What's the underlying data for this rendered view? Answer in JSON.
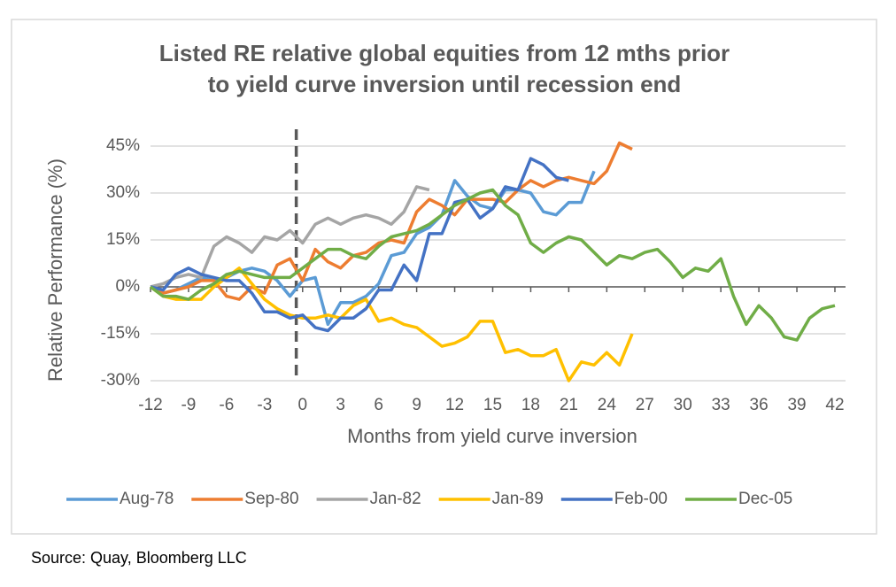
{
  "chart_data": {
    "type": "line",
    "title": [
      "Listed RE relative global equities from 12 mths prior",
      "to yield curve inversion until recession end"
    ],
    "x_label": "Months from yield curve inversion",
    "y_label": "Relative Performance (%)",
    "source": "Source: Quay, Bloomberg LLC",
    "x": [
      -12,
      -11,
      -10,
      -9,
      -8,
      -7,
      -6,
      -5,
      -4,
      -3,
      -2,
      -1,
      0,
      1,
      2,
      3,
      4,
      5,
      6,
      7,
      8,
      9,
      10,
      11,
      12,
      13,
      14,
      15,
      16,
      17,
      18,
      19,
      20,
      21,
      22,
      23,
      24,
      25,
      26,
      27,
      28,
      29,
      30,
      31,
      32,
      33,
      34,
      35,
      36,
      37,
      38,
      39,
      40,
      41,
      42
    ],
    "xlim": [
      -12,
      42
    ],
    "xticks": [
      -12,
      -9,
      -6,
      -3,
      0,
      3,
      6,
      9,
      12,
      15,
      18,
      21,
      24,
      27,
      30,
      33,
      36,
      39,
      42
    ],
    "ylim": [
      -30,
      45
    ],
    "yticks": [
      {
        "value": -30,
        "label": "-30%"
      },
      {
        "value": -15,
        "label": "-15%"
      },
      {
        "value": 0,
        "label": "0%"
      },
      {
        "value": 15,
        "label": "15%"
      },
      {
        "value": 30,
        "label": "30%"
      },
      {
        "value": 45,
        "label": "45%"
      }
    ],
    "grid": true,
    "vline_x": -0.5,
    "legend": "bottom",
    "series": [
      {
        "name": "Aug-78",
        "color": "#5b9bd5",
        "values": [
          0,
          -2,
          -1,
          1,
          3,
          2,
          3,
          5,
          6,
          5,
          2,
          -3,
          2,
          3,
          -12,
          -5,
          -5,
          -3,
          1,
          10,
          11,
          17,
          19,
          23,
          34,
          29,
          26,
          25,
          31,
          31,
          30,
          24,
          23,
          27,
          27,
          37,
          null,
          null,
          null,
          null,
          null,
          null,
          null,
          null,
          null,
          null,
          null,
          null,
          null,
          null,
          null,
          null,
          null,
          null,
          null
        ]
      },
      {
        "name": "Sep-80",
        "color": "#ed7d31",
        "values": [
          0,
          -2,
          -1,
          0,
          2,
          2,
          -3,
          -4,
          0,
          -2,
          7,
          9,
          2,
          12,
          8,
          6,
          10,
          11,
          14,
          15,
          14,
          24,
          28,
          26,
          23,
          28,
          28,
          28,
          27,
          31,
          34,
          32,
          34,
          35,
          34,
          33,
          37,
          46,
          44,
          null,
          null,
          null,
          null,
          null,
          null,
          null,
          null,
          null,
          null,
          null,
          null,
          null,
          null,
          null,
          null
        ]
      },
      {
        "name": "Jan-82",
        "color": "#a5a5a5",
        "values": [
          0,
          1,
          3,
          4,
          3,
          13,
          16,
          14,
          11,
          16,
          15,
          18,
          14,
          20,
          22,
          20,
          22,
          23,
          22,
          20,
          24,
          32,
          31,
          null,
          null,
          null,
          null,
          null,
          null,
          null,
          null,
          null,
          null,
          null,
          null,
          null,
          null,
          null,
          null,
          null,
          null,
          null,
          null,
          null,
          null,
          null,
          null,
          null,
          null,
          null,
          null,
          null,
          null,
          null,
          null
        ]
      },
      {
        "name": "Jan-89",
        "color": "#ffc000",
        "values": [
          0,
          -3,
          -4,
          -4,
          -4,
          0,
          3,
          6,
          1,
          -4,
          -7,
          -9,
          -10,
          -10,
          -9,
          -10,
          -6,
          -4,
          -11,
          -10,
          -12,
          -13,
          -16,
          -19,
          -18,
          -16,
          -11,
          -11,
          -21,
          -20,
          -22,
          -22,
          -20,
          -30,
          -24,
          -25,
          -21,
          -25,
          -15,
          null,
          null,
          null,
          null,
          null,
          null,
          null,
          null,
          null,
          null,
          null,
          null,
          null,
          null,
          null,
          null
        ]
      },
      {
        "name": "Feb-00",
        "color": "#4472c4",
        "values": [
          0,
          -1,
          4,
          6,
          4,
          3,
          2,
          2,
          -2,
          -8,
          -8,
          -10,
          -9,
          -13,
          -14,
          -10,
          -10,
          -7,
          -1,
          -1,
          7,
          2,
          17,
          17,
          27,
          28,
          22,
          25,
          32,
          31,
          41,
          39,
          35,
          34,
          null,
          null,
          null,
          null,
          null,
          null,
          null,
          null,
          null,
          null,
          null,
          null,
          null,
          null,
          null,
          null,
          null,
          null,
          null,
          null,
          null
        ]
      },
      {
        "name": "Dec-05",
        "color": "#70ad47",
        "values": [
          0,
          -3,
          -3,
          -4,
          -1,
          1,
          4,
          5,
          4,
          3,
          3,
          3,
          6,
          9,
          12,
          12,
          10,
          9,
          13,
          16,
          17,
          18,
          20,
          23,
          26,
          28,
          30,
          31,
          26,
          23,
          14,
          11,
          14,
          16,
          15,
          11,
          7,
          10,
          9,
          11,
          12,
          8,
          3,
          6,
          5,
          9,
          -3,
          -12,
          -6,
          -10,
          -16,
          -17,
          -10,
          -7,
          -6
        ]
      }
    ]
  }
}
